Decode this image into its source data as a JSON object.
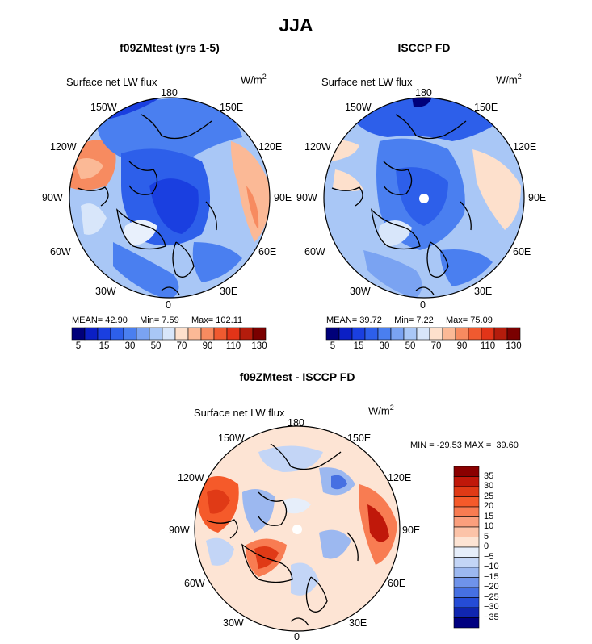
{
  "title": "JJA",
  "panels": [
    {
      "id": "model",
      "title": "f09ZMtest (yrs 1-5)",
      "field": "Surface net LW flux",
      "units": "W/m",
      "units_exp": "2",
      "stats": {
        "mean_label": "MEAN=",
        "mean": "42.90",
        "min_label": "Min=",
        "min": "7.59",
        "max_label": "Max=",
        "max": "102.11"
      }
    },
    {
      "id": "obs",
      "title": "ISCCP FD",
      "field": "Surface net LW flux",
      "units": "W/m",
      "units_exp": "2",
      "stats": {
        "mean_label": "MEAN=",
        "mean": "39.72",
        "min_label": "Min=",
        "min": "7.22",
        "max_label": "Max=",
        "max": "75.09"
      }
    },
    {
      "id": "diff",
      "title": "f09ZMtest - ISCCP FD",
      "field": "Surface net LW flux",
      "units": "W/m",
      "units_exp": "2",
      "stats_text": "MIN = -29.53 MAX =  39.60"
    }
  ],
  "longitude_labels": {
    "n180": "180",
    "e150": "150E",
    "e120": "120E",
    "e90": "90E",
    "e60": "60E",
    "e30": "30E",
    "s0": "0",
    "w30": "30W",
    "w60": "60W",
    "w90": "90W",
    "w120": "120W",
    "w150": "150W"
  },
  "colorbar_abs": {
    "colors": [
      "#00007a",
      "#0b1fc4",
      "#1a3fe0",
      "#2d5fea",
      "#4a7ff0",
      "#7aa3f2",
      "#a9c7f6",
      "#d8e6fa",
      "#fde0cc",
      "#fbb996",
      "#f78b60",
      "#f05a30",
      "#e23418",
      "#b41c0c",
      "#7a0000"
    ],
    "tick_labels": [
      "5",
      "15",
      "30",
      "50",
      "70",
      "90",
      "110",
      "130"
    ]
  },
  "colorbar_diff": {
    "colors": [
      "#8a0000",
      "#c0180a",
      "#e03a16",
      "#f55a2a",
      "#f87c52",
      "#fa9f7d",
      "#fcc3a8",
      "#fde4d4",
      "#e6eefa",
      "#c3d5f6",
      "#9cb8f0",
      "#6f93ea",
      "#4670e2",
      "#254cd6",
      "#1026b0",
      "#000080"
    ],
    "tick_labels": [
      "35",
      "30",
      "25",
      "20",
      "15",
      "10",
      "5",
      "0",
      "−5",
      "−10",
      "−15",
      "−20",
      "−25",
      "−30",
      "−35"
    ]
  },
  "chart_data": [
    {
      "type": "heatmap",
      "projection": "north polar stereographic",
      "title": "f09ZMtest (yrs 1-5)",
      "field": "Surface net LW flux",
      "units": "W/m^2",
      "mean": 42.9,
      "min": 7.59,
      "max": 102.11,
      "levels": [
        5,
        10,
        15,
        20,
        30,
        40,
        50,
        60,
        70,
        80,
        90,
        100,
        110,
        120,
        130
      ]
    },
    {
      "type": "heatmap",
      "projection": "north polar stereographic",
      "title": "ISCCP FD",
      "field": "Surface net LW flux",
      "units": "W/m^2",
      "mean": 39.72,
      "min": 7.22,
      "max": 75.09,
      "levels": [
        5,
        10,
        15,
        20,
        30,
        40,
        50,
        60,
        70,
        80,
        90,
        100,
        110,
        120,
        130
      ]
    },
    {
      "type": "heatmap",
      "projection": "north polar stereographic",
      "title": "f09ZMtest - ISCCP FD",
      "field": "Surface net LW flux",
      "units": "W/m^2",
      "min": -29.53,
      "max": 39.6,
      "levels": [
        -35,
        -30,
        -25,
        -20,
        -15,
        -10,
        -5,
        0,
        5,
        10,
        15,
        20,
        25,
        30,
        35
      ]
    }
  ]
}
